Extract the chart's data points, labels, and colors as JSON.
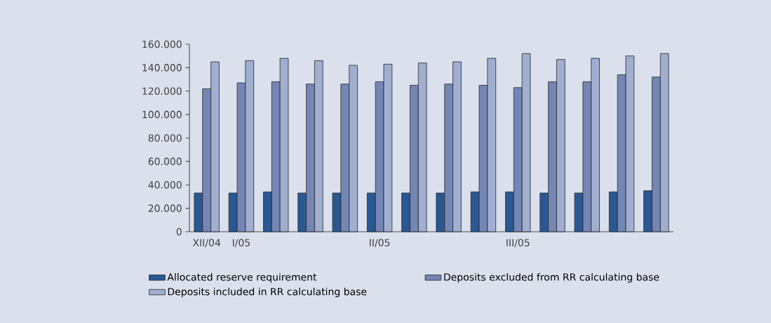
{
  "chart_data": {
    "type": "bar",
    "categories": [
      "XII/04",
      "I/05",
      null,
      null,
      null,
      "II/05",
      null,
      null,
      null,
      "III/05",
      null,
      null,
      null,
      null
    ],
    "series": [
      {
        "name": "Allocated reserve requirement",
        "color": "#2a5894",
        "values": [
          33000,
          33000,
          34000,
          33000,
          33000,
          33000,
          33000,
          33000,
          34000,
          34000,
          33000,
          33000,
          34000,
          35000
        ]
      },
      {
        "name": "Deposits excluded from RR calculating base",
        "color": "#7486b5",
        "values": [
          122000,
          127000,
          128000,
          126000,
          126000,
          128000,
          125000,
          126000,
          125000,
          123000,
          128000,
          128000,
          134000,
          132000
        ]
      },
      {
        "name": "Deposits included in RR calculating base",
        "color": "#a0aed0",
        "values": [
          145000,
          146000,
          148000,
          146000,
          142000,
          143000,
          144000,
          145000,
          148000,
          152000,
          147000,
          148000,
          150000,
          152000
        ]
      }
    ],
    "ylim": [
      0,
      160000
    ],
    "yticks": [
      0,
      {
        "value": 20000,
        "label": "20.000"
      },
      {
        "value": 40000,
        "label": "40.000"
      },
      {
        "value": 60000,
        "label": "60.000"
      },
      {
        "value": 80000,
        "label": "80.000"
      },
      {
        "value": 100000,
        "label": "100.000"
      },
      {
        "value": 120000,
        "label": "120.000"
      },
      {
        "value": 140000,
        "label": "140.000"
      },
      {
        "value": 160000,
        "label": "160.000"
      }
    ],
    "legend": "bottom",
    "grid": false
  }
}
